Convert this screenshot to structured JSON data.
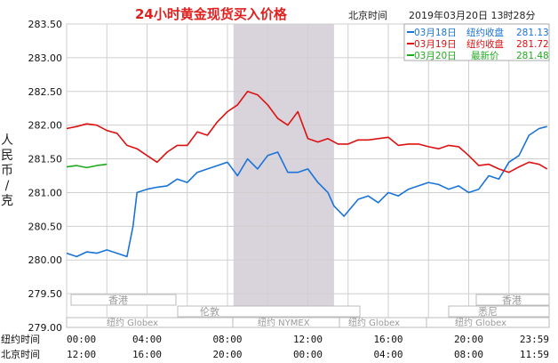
{
  "header": {
    "title": "24小时黄金现货买入价格",
    "tz_label": "北京时间",
    "timestamp": "2019年03月20日 13时28分"
  },
  "legend": [
    {
      "date": "03月18日",
      "label": "纽约收盘",
      "value": "281.13",
      "color": "#1a73d8"
    },
    {
      "date": "03月19日",
      "label": "纽约收盘",
      "value": "281.72",
      "color": "#dd1111"
    },
    {
      "date": "03月20日",
      "label": "最新价",
      "value": "281.48",
      "color": "#1faa1f"
    }
  ],
  "y_axis_title": "人民币/克",
  "markets": {
    "row1": [
      "香港",
      "香港"
    ],
    "row2": [
      "伦敦",
      "悉尼"
    ],
    "row3": [
      "纽约 Globex",
      "纽约 NYMEX",
      "纽约 Globex",
      "纽约 Globex"
    ]
  },
  "time_axes": {
    "ny_label": "纽约时间",
    "bj_label": "北京时间",
    "ny_ticks": [
      "00:00",
      "04:00",
      "08:00",
      "12:00",
      "16:00",
      "20:00",
      "23:59"
    ],
    "bj_ticks": [
      "12:00",
      "16:00",
      "20:00",
      "00:00",
      "04:00",
      "08:00",
      "11:59"
    ]
  },
  "chart_data": {
    "type": "line",
    "title": "24小时黄金现货买入价格",
    "ylabel": "人民币/克",
    "ylim": [
      279.0,
      283.5
    ],
    "yticks": [
      "283.50",
      "283.00",
      "282.50",
      "282.00",
      "281.50",
      "281.00",
      "280.50",
      "280.00",
      "279.50",
      "279.00"
    ],
    "x_unit": "hours since 00:00 New York time",
    "xlim": [
      0,
      24
    ],
    "grid": true,
    "highlight_range_hours": [
      8.3,
      13.3
    ],
    "series": [
      {
        "name": "03月18日",
        "color": "#1a73d8",
        "points": [
          [
            0,
            280.1
          ],
          [
            0.5,
            280.05
          ],
          [
            1,
            280.12
          ],
          [
            1.5,
            280.1
          ],
          [
            2,
            280.15
          ],
          [
            2.5,
            280.1
          ],
          [
            3,
            280.05
          ],
          [
            3.3,
            280.5
          ],
          [
            3.5,
            281.0
          ],
          [
            4,
            281.05
          ],
          [
            4.5,
            281.08
          ],
          [
            5,
            281.1
          ],
          [
            5.5,
            281.2
          ],
          [
            6,
            281.15
          ],
          [
            6.5,
            281.3
          ],
          [
            7,
            281.35
          ],
          [
            7.5,
            281.4
          ],
          [
            8,
            281.45
          ],
          [
            8.5,
            281.25
          ],
          [
            9,
            281.5
          ],
          [
            9.5,
            281.35
          ],
          [
            10,
            281.55
          ],
          [
            10.5,
            281.6
          ],
          [
            11,
            281.3
          ],
          [
            11.5,
            281.3
          ],
          [
            12,
            281.35
          ],
          [
            12.5,
            281.15
          ],
          [
            13,
            281.0
          ],
          [
            13.3,
            280.8
          ],
          [
            13.8,
            280.65
          ],
          [
            14.5,
            280.9
          ],
          [
            15,
            280.95
          ],
          [
            15.5,
            280.85
          ],
          [
            16,
            281.0
          ],
          [
            16.5,
            280.95
          ],
          [
            17,
            281.05
          ],
          [
            17.5,
            281.1
          ],
          [
            18,
            281.15
          ],
          [
            18.5,
            281.12
          ],
          [
            19,
            281.05
          ],
          [
            19.5,
            281.1
          ],
          [
            20,
            281.0
          ],
          [
            20.5,
            281.05
          ],
          [
            21,
            281.25
          ],
          [
            21.5,
            281.2
          ],
          [
            22,
            281.45
          ],
          [
            22.5,
            281.55
          ],
          [
            23,
            281.85
          ],
          [
            23.5,
            281.95
          ],
          [
            23.9,
            281.98
          ]
        ]
      },
      {
        "name": "03月19日",
        "color": "#dd1111",
        "points": [
          [
            0,
            281.95
          ],
          [
            0.5,
            281.98
          ],
          [
            1,
            282.02
          ],
          [
            1.5,
            282.0
          ],
          [
            2,
            281.92
          ],
          [
            2.5,
            281.88
          ],
          [
            3,
            281.7
          ],
          [
            3.5,
            281.65
          ],
          [
            4,
            281.55
          ],
          [
            4.5,
            281.45
          ],
          [
            5,
            281.6
          ],
          [
            5.5,
            281.7
          ],
          [
            6,
            281.7
          ],
          [
            6.5,
            281.9
          ],
          [
            7,
            281.85
          ],
          [
            7.5,
            282.05
          ],
          [
            8,
            282.2
          ],
          [
            8.5,
            282.3
          ],
          [
            9,
            282.5
          ],
          [
            9.5,
            282.45
          ],
          [
            10,
            282.3
          ],
          [
            10.5,
            282.1
          ],
          [
            11,
            282.0
          ],
          [
            11.5,
            282.2
          ],
          [
            12,
            281.8
          ],
          [
            12.5,
            281.75
          ],
          [
            13,
            281.8
          ],
          [
            13.5,
            281.72
          ],
          [
            14,
            281.72
          ],
          [
            14.5,
            281.78
          ],
          [
            15,
            281.78
          ],
          [
            15.5,
            281.8
          ],
          [
            16,
            281.82
          ],
          [
            16.5,
            281.7
          ],
          [
            17,
            281.72
          ],
          [
            17.5,
            281.72
          ],
          [
            18,
            281.68
          ],
          [
            18.5,
            281.65
          ],
          [
            19,
            281.7
          ],
          [
            19.5,
            281.68
          ],
          [
            20,
            281.55
          ],
          [
            20.5,
            281.4
          ],
          [
            21,
            281.42
          ],
          [
            21.5,
            281.35
          ],
          [
            22,
            281.3
          ],
          [
            22.5,
            281.38
          ],
          [
            23,
            281.45
          ],
          [
            23.5,
            281.42
          ],
          [
            23.9,
            281.35
          ]
        ]
      },
      {
        "name": "03月20日",
        "color": "#1faa1f",
        "points": [
          [
            0,
            281.38
          ],
          [
            0.5,
            281.4
          ],
          [
            1,
            281.37
          ],
          [
            1.5,
            281.4
          ],
          [
            2,
            281.42
          ]
        ]
      }
    ]
  }
}
